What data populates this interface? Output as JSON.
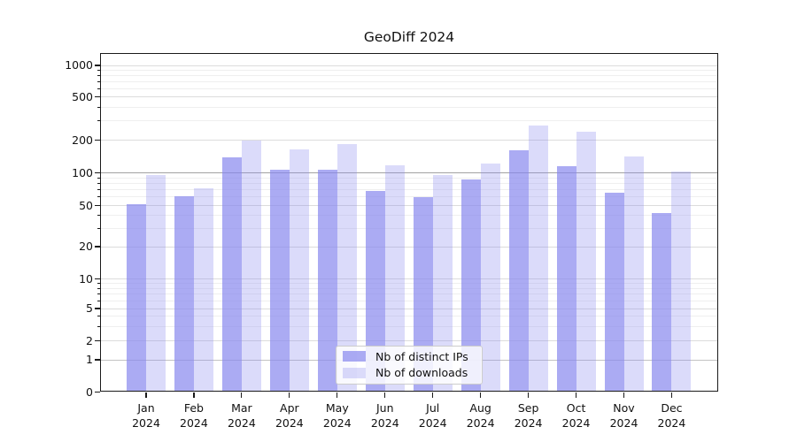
{
  "title": "GeoDiff 2024",
  "legend": {
    "items": [
      {
        "label": "Nb of distinct IPs",
        "color": "rgba(136,136,238,0.7)"
      },
      {
        "label": "Nb of downloads",
        "color": "rgba(136,136,238,0.3)"
      }
    ],
    "position": "lower center"
  },
  "chart_data": {
    "type": "bar",
    "title": "GeoDiff 2024",
    "categories": [
      "Jan 2024",
      "Feb 2024",
      "Mar 2024",
      "Apr 2024",
      "May 2024",
      "Jun 2024",
      "Jul 2024",
      "Aug 2024",
      "Sep 2024",
      "Oct 2024",
      "Nov 2024",
      "Dec 2024"
    ],
    "x_months": [
      "Jan",
      "Feb",
      "Mar",
      "Apr",
      "May",
      "Jun",
      "Jul",
      "Aug",
      "Sep",
      "Oct",
      "Nov",
      "Dec"
    ],
    "x_year": "2024",
    "series": [
      {
        "name": "Nb of distinct IPs",
        "color": "rgba(136,136,238,0.7)",
        "values": [
          51,
          61,
          140,
          107,
          107,
          68,
          60,
          87,
          161,
          115,
          66,
          42
        ]
      },
      {
        "name": "Nb of downloads",
        "color": "rgba(136,136,238,0.3)",
        "values": [
          95,
          72,
          198,
          163,
          185,
          117,
          96,
          121,
          272,
          238,
          141,
          103
        ]
      }
    ],
    "y_scale": "symlog",
    "y_ticks": [
      0,
      1,
      2,
      5,
      10,
      20,
      50,
      100,
      200,
      500,
      1000
    ],
    "ylim": [
      0,
      1300
    ],
    "xlabel": "",
    "ylabel": "",
    "grid": "horizontal",
    "legend_position": "lower center",
    "colors": {
      "bar_dark": "rgba(136,136,238,0.7)",
      "bar_light": "rgba(136,136,238,0.3)",
      "grid_major": "#dcdcdc",
      "grid_decade_1": "#c3c3c3",
      "grid_decade_100": "#a2a2a2",
      "grid_minor": "#efefef"
    }
  }
}
